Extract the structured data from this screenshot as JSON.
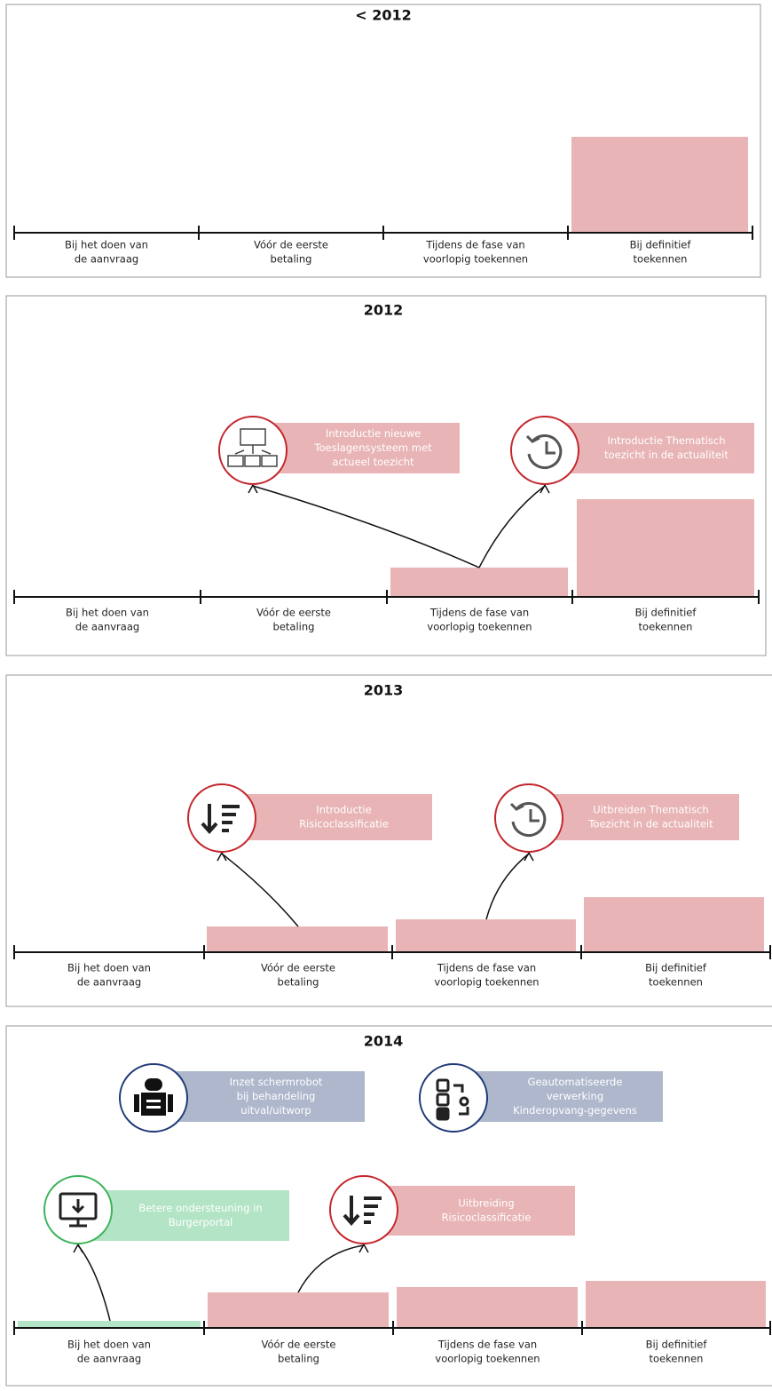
{
  "panels": [
    {
      "title": "< 2012",
      "phases": [
        [
          "Bij het doen van",
          "de aanvraag"
        ],
        [
          "Vóór de eerste",
          "betaling"
        ],
        [
          "Tijdens de fase van",
          "voorlopig toekennen"
        ],
        [
          "Bij definitief",
          "toekennen"
        ]
      ],
      "callouts": []
    },
    {
      "title": "2012",
      "phases": [
        [
          "Bij het doen van",
          "de aanvraag"
        ],
        [
          "Vóór de eerste",
          "betaling"
        ],
        [
          "Tijdens de fase van",
          "voorlopig toekennen"
        ],
        [
          "Bij definitief",
          "toekennen"
        ]
      ],
      "callouts": [
        {
          "lines": [
            "Introductie nieuwe",
            "Toeslagensysteem met",
            "actueel toezicht"
          ]
        },
        {
          "lines": [
            "Introductie Thematisch",
            "toezicht in de actualiteit"
          ]
        }
      ]
    },
    {
      "title": "2013",
      "phases": [
        [
          "Bij het doen van",
          "de aanvraag"
        ],
        [
          "Vóór de eerste",
          "betaling"
        ],
        [
          "Tijdens de fase van",
          "voorlopig toekennen"
        ],
        [
          "Bij definitief",
          "toekennen"
        ]
      ],
      "callouts": [
        {
          "lines": [
            "Introductie",
            "Risicoclassificatie"
          ]
        },
        {
          "lines": [
            "Uitbreiden Thematisch",
            "Toezicht in de actualiteit"
          ]
        }
      ]
    },
    {
      "title": "2014",
      "phases": [
        [
          "Bij het doen van",
          "de aanvraag"
        ],
        [
          "Vóór de eerste",
          "betaling"
        ],
        [
          "Tijdens de fase van",
          "voorlopig toekennen"
        ],
        [
          "Bij definitief",
          "toekennen"
        ]
      ],
      "callouts": [
        {
          "lines": [
            "Inzet schermrobot",
            "bij behandeling",
            "uitval/uitworp"
          ]
        },
        {
          "lines": [
            "Geautomatiseerde",
            "verwerking",
            "Kinderopvang-gegevens"
          ]
        },
        {
          "lines": [
            "Betere ondersteuning in",
            "Burgerportal"
          ]
        },
        {
          "lines": [
            "Uitbreiding",
            "Risicoclassificatie"
          ]
        }
      ]
    }
  ]
}
